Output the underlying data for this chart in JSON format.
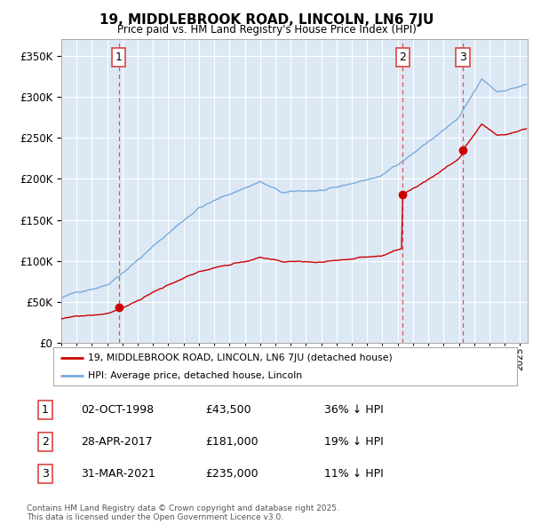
{
  "title_line1": "19, MIDDLEBROOK ROAD, LINCOLN, LN6 7JU",
  "title_line2": "Price paid vs. HM Land Registry's House Price Index (HPI)",
  "background_color": "#ffffff",
  "plot_bg_color": "#dce9f5",
  "grid_color": "#ffffff",
  "red_color": "#cc0000",
  "blue_color": "#7aaadd",
  "dashed_red_color": "#dd4444",
  "transactions": [
    {
      "num": 1,
      "date_x": 1998.75,
      "price": 43500
    },
    {
      "num": 2,
      "date_x": 2017.33,
      "price": 181000
    },
    {
      "num": 3,
      "date_x": 2021.25,
      "price": 235000
    }
  ],
  "legend_entries": [
    "19, MIDDLEBROOK ROAD, LINCOLN, LN6 7JU (detached house)",
    "HPI: Average price, detached house, Lincoln"
  ],
  "table_data": [
    [
      "1",
      "02-OCT-1998",
      "£43,500",
      "36% ↓ HPI"
    ],
    [
      "2",
      "28-APR-2017",
      "£181,000",
      "19% ↓ HPI"
    ],
    [
      "3",
      "31-MAR-2021",
      "£235,000",
      "11% ↓ HPI"
    ]
  ],
  "footer": "Contains HM Land Registry data © Crown copyright and database right 2025.\nThis data is licensed under the Open Government Licence v3.0.",
  "ylim": [
    0,
    370000
  ],
  "xlim_start": 1995.0,
  "xlim_end": 2025.5
}
